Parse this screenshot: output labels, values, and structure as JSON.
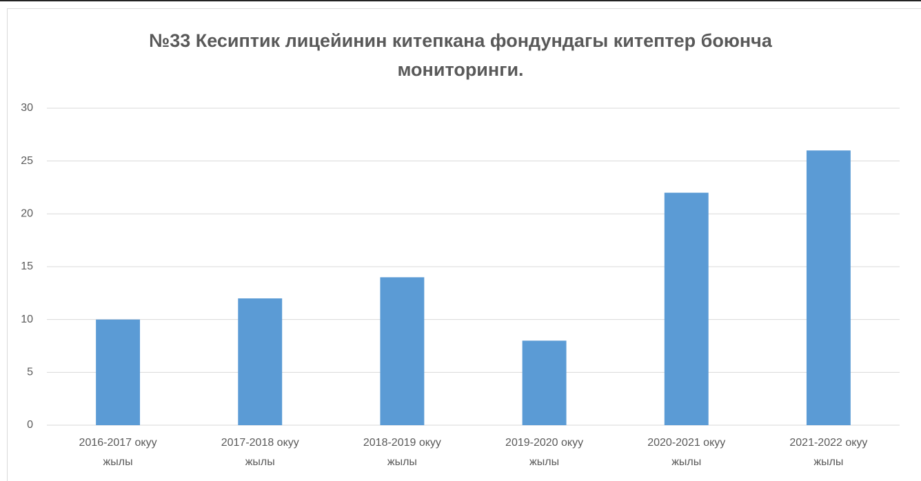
{
  "chart_data": {
    "type": "bar",
    "title": "№33 Кесиптик лицейинин китепкана фондундагы китептер боюнча мониторинги.",
    "categories": [
      "2016-2017 окуу жылы",
      "2017-2018 окуу жылы",
      "2018-2019 окуу жылы",
      "2019-2020 окуу жылы",
      "2020-2021 окуу жылы",
      "2021-2022 окуу жылы"
    ],
    "values": [
      10,
      12,
      14,
      8,
      22,
      26
    ],
    "color": "#5b9bd5",
    "ylim": [
      0,
      30
    ],
    "yticks": [
      0,
      5,
      10,
      15,
      20,
      25,
      30
    ],
    "grid": true
  }
}
